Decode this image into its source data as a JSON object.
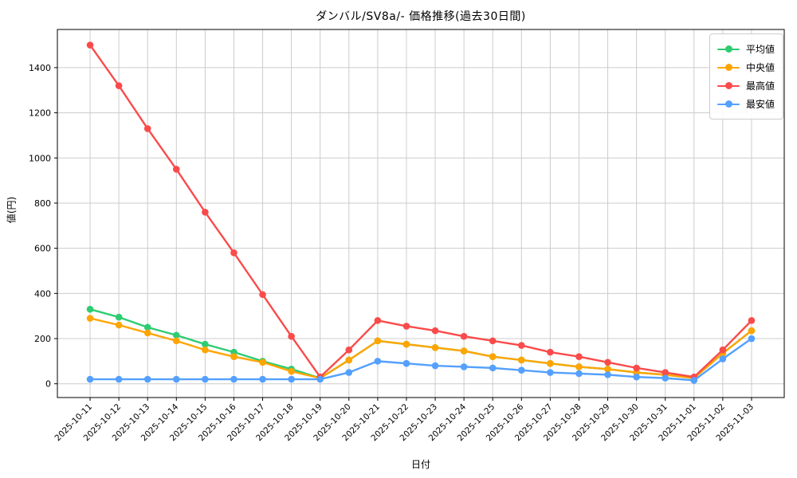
{
  "title": "ダンバル/SV8a/- 価格推移(過去30日間)",
  "chart_data": {
    "type": "line",
    "title": "ダンバル/SV8a/- 価格推移(過去30日間)",
    "xlabel": "日付",
    "ylabel": "値(円)",
    "grid": true,
    "legend_position": "upper right",
    "ylim": [
      -61,
      1569
    ],
    "yticks": [
      0,
      200,
      400,
      600,
      800,
      1000,
      1200,
      1400
    ],
    "categories": [
      "2025-10-11",
      "2025-10-12",
      "2025-10-13",
      "2025-10-14",
      "2025-10-15",
      "2025-10-16",
      "2025-10-17",
      "2025-10-18",
      "2025-10-19",
      "2025-10-20",
      "2025-10-21",
      "2025-10-22",
      "2025-10-23",
      "2025-10-24",
      "2025-10-25",
      "2025-10-26",
      "2025-10-27",
      "2025-10-28",
      "2025-10-29",
      "2025-10-30",
      "2025-10-31",
      "2025-11-01",
      "2025-11-02",
      "2025-11-03"
    ],
    "series": [
      {
        "name": "平均値",
        "color": "#2ecc71",
        "values": [
          330,
          295,
          250,
          215,
          175,
          140,
          100,
          65,
          25,
          105,
          190,
          175,
          160,
          145,
          120,
          105,
          90,
          75,
          65,
          50,
          40,
          25,
          135,
          235
        ]
      },
      {
        "name": "中央値",
        "color": "#ffa502",
        "values": [
          290,
          260,
          225,
          190,
          150,
          120,
          95,
          55,
          25,
          105,
          190,
          175,
          160,
          145,
          120,
          105,
          90,
          75,
          65,
          50,
          40,
          25,
          135,
          235
        ]
      },
      {
        "name": "最高値",
        "color": "#fa4b4b",
        "values": [
          1500,
          1320,
          1130,
          950,
          760,
          580,
          395,
          210,
          30,
          150,
          280,
          255,
          235,
          210,
          190,
          170,
          140,
          120,
          95,
          70,
          50,
          30,
          150,
          280
        ]
      },
      {
        "name": "最安値",
        "color": "#54a0ff",
        "values": [
          20,
          20,
          20,
          20,
          20,
          20,
          20,
          20,
          20,
          50,
          100,
          90,
          80,
          75,
          70,
          60,
          50,
          45,
          40,
          30,
          25,
          15,
          110,
          200
        ]
      }
    ]
  }
}
